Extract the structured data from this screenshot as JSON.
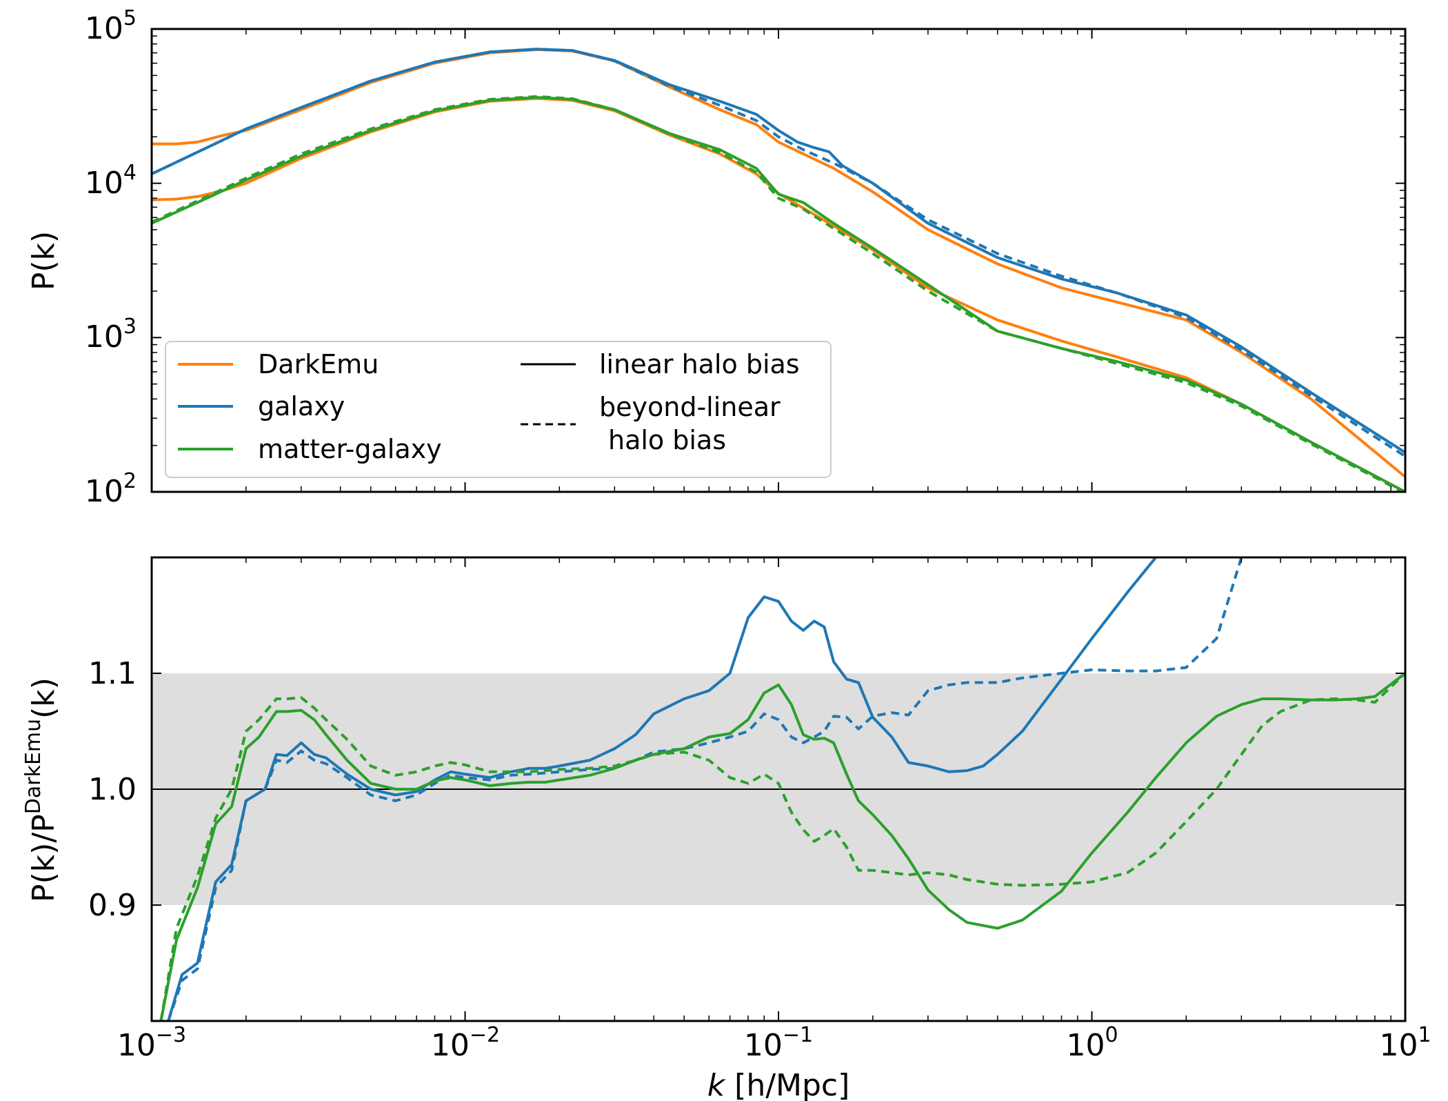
{
  "colors": {
    "DarkEmu": "#ff7f0e",
    "galaxy": "#1f77b4",
    "matter-galaxy": "#2ca02c",
    "band": "#dedede"
  },
  "legend": {
    "entries": [
      {
        "label": "DarkEmu",
        "color": "#ff7f0e",
        "style": "solid"
      },
      {
        "label": "galaxy",
        "color": "#1f77b4",
        "style": "solid"
      },
      {
        "label": "matter-galaxy",
        "color": "#2ca02c",
        "style": "solid"
      },
      {
        "label": "linear halo bias",
        "color": "#000000",
        "style": "solid"
      },
      {
        "label": "beyond-linear",
        "label2": "halo bias",
        "color": "#000000",
        "style": "dashed"
      }
    ]
  },
  "chart_data": [
    {
      "type": "line",
      "xscale": "log",
      "yscale": "log",
      "xlim": [
        0.001,
        10
      ],
      "ylim": [
        100,
        100000
      ],
      "xlabel": "k [h/Mpc]",
      "ylabel": "P(k)",
      "xticks": [
        {
          "base": "10",
          "exp": "−3"
        },
        {
          "base": "10",
          "exp": "−2"
        },
        {
          "base": "10",
          "exp": "−1"
        },
        {
          "base": "10",
          "exp": "0"
        },
        {
          "base": "10",
          "exp": "1"
        }
      ],
      "yticks": [
        {
          "v": 100,
          "base": "10",
          "exp": "2"
        },
        {
          "v": 1000,
          "base": "10",
          "exp": "3"
        },
        {
          "v": 10000,
          "base": "10",
          "exp": "4"
        },
        {
          "v": 100000,
          "base": "10",
          "exp": "5"
        }
      ],
      "legend_position": "lower left",
      "series": [
        {
          "name": "DarkEmu",
          "color": "#ff7f0e",
          "dash": false,
          "x": [
            0.001,
            0.0012,
            0.0014,
            0.0017,
            0.002,
            0.003,
            0.005,
            0.008,
            0.012,
            0.017,
            0.022,
            0.03,
            0.045,
            0.065,
            0.085,
            0.1,
            0.12,
            0.15,
            0.2,
            0.3,
            0.5,
            0.8,
            1.2,
            2,
            3,
            5,
            10
          ],
          "y": [
            18000,
            18000,
            18500,
            20500,
            22000,
            30000,
            45000,
            60000,
            70000,
            73500,
            72000,
            62000,
            42000,
            30000,
            24000,
            18500,
            15500,
            12500,
            8800,
            5000,
            3000,
            2100,
            1700,
            1300,
            800,
            400,
            125
          ]
        },
        {
          "name": "galaxy",
          "color": "#1f77b4",
          "dash": false,
          "x": [
            0.001,
            0.0015,
            0.002,
            0.003,
            0.005,
            0.008,
            0.012,
            0.017,
            0.022,
            0.03,
            0.045,
            0.065,
            0.085,
            0.1,
            0.115,
            0.13,
            0.145,
            0.16,
            0.2,
            0.3,
            0.5,
            0.8,
            1.2,
            2,
            3,
            5,
            10
          ],
          "y": [
            11500,
            17000,
            22500,
            31000,
            46000,
            61000,
            71000,
            74000,
            72500,
            62500,
            43500,
            34000,
            28000,
            22000,
            18500,
            17000,
            16000,
            13000,
            10000,
            5500,
            3300,
            2400,
            1950,
            1400,
            870,
            440,
            180
          ]
        },
        {
          "name": "galaxy",
          "color": "#1f77b4",
          "dash": true,
          "x": [
            0.001,
            0.0015,
            0.002,
            0.003,
            0.005,
            0.008,
            0.012,
            0.017,
            0.022,
            0.03,
            0.045,
            0.065,
            0.085,
            0.1,
            0.12,
            0.15,
            0.2,
            0.3,
            0.5,
            0.8,
            1.2,
            2,
            3,
            5,
            10
          ],
          "y": [
            11500,
            17000,
            22500,
            31000,
            46000,
            61000,
            71000,
            74000,
            72500,
            62000,
            42500,
            32000,
            25500,
            20000,
            16500,
            13500,
            10000,
            5800,
            3500,
            2500,
            1950,
            1350,
            830,
            420,
            170
          ]
        },
        {
          "name": "DarkEmu",
          "color": "#ff7f0e",
          "dash": false,
          "x": [
            0.001,
            0.0012,
            0.0014,
            0.0017,
            0.002,
            0.003,
            0.005,
            0.008,
            0.012,
            0.017,
            0.022,
            0.03,
            0.045,
            0.065,
            0.085,
            0.1,
            0.12,
            0.15,
            0.2,
            0.3,
            0.5,
            0.8,
            1.2,
            2,
            3,
            5,
            10
          ],
          "y": [
            7800,
            7900,
            8200,
            9000,
            10000,
            14500,
            21500,
            29000,
            34000,
            35500,
            34500,
            29500,
            20500,
            15500,
            11500,
            8600,
            6900,
            5300,
            3700,
            2100,
            1300,
            950,
            750,
            550,
            370,
            210,
            100
          ]
        },
        {
          "name": "matter-galaxy",
          "color": "#2ca02c",
          "dash": false,
          "x": [
            0.001,
            0.0015,
            0.002,
            0.003,
            0.005,
            0.008,
            0.012,
            0.017,
            0.022,
            0.03,
            0.045,
            0.065,
            0.085,
            0.1,
            0.12,
            0.15,
            0.2,
            0.3,
            0.5,
            0.8,
            1.2,
            2,
            3,
            5,
            10
          ],
          "y": [
            5500,
            8000,
            10500,
            15000,
            22000,
            29500,
            34500,
            36000,
            35000,
            30000,
            21000,
            16500,
            12500,
            8500,
            7500,
            5500,
            3800,
            2200,
            1100,
            850,
            700,
            530,
            370,
            210,
            100
          ]
        },
        {
          "name": "matter-galaxy",
          "color": "#2ca02c",
          "dash": true,
          "x": [
            0.001,
            0.0015,
            0.002,
            0.003,
            0.005,
            0.008,
            0.012,
            0.017,
            0.022,
            0.03,
            0.045,
            0.065,
            0.085,
            0.1,
            0.12,
            0.15,
            0.2,
            0.3,
            0.5,
            0.8,
            1.2,
            2,
            3,
            5,
            10
          ],
          "y": [
            5600,
            8200,
            10800,
            15500,
            22500,
            30000,
            35000,
            36500,
            35300,
            30000,
            20800,
            15800,
            11800,
            8000,
            6800,
            5100,
            3500,
            2000,
            1100,
            850,
            680,
            510,
            360,
            205,
            98
          ]
        }
      ]
    },
    {
      "type": "line",
      "xscale": "log",
      "yscale": "linear",
      "xlim": [
        0.001,
        10
      ],
      "ylim": [
        0.8,
        1.2
      ],
      "xlabel": "k [h/Mpc]",
      "ylabel": "P(k)/P^{DarkEmu}(k)",
      "xticks": [
        {
          "base": "10",
          "exp": "−3"
        },
        {
          "base": "10",
          "exp": "−2"
        },
        {
          "base": "10",
          "exp": "−1"
        },
        {
          "base": "10",
          "exp": "0"
        },
        {
          "base": "10",
          "exp": "1"
        }
      ],
      "yticks": [
        "0.9",
        "1.0",
        "1.1"
      ],
      "band": [
        0.9,
        1.1
      ],
      "hline": 1.0,
      "series": [
        {
          "name": "galaxy",
          "color": "#1f77b4",
          "dash": false,
          "x": [
            0.00113,
            0.00125,
            0.0014,
            0.0016,
            0.0018,
            0.002,
            0.0023,
            0.0025,
            0.0027,
            0.003,
            0.0033,
            0.0036,
            0.0042,
            0.005,
            0.006,
            0.007,
            0.008,
            0.009,
            0.01,
            0.012,
            0.014,
            0.016,
            0.018,
            0.02,
            0.025,
            0.03,
            0.035,
            0.04,
            0.05,
            0.06,
            0.07,
            0.08,
            0.09,
            0.1,
            0.11,
            0.12,
            0.13,
            0.14,
            0.15,
            0.165,
            0.18,
            0.2,
            0.23,
            0.26,
            0.3,
            0.35,
            0.4,
            0.45,
            0.5,
            0.6,
            0.8,
            1.0,
            1.3,
            1.6
          ],
          "y": [
            0.8,
            0.84,
            0.85,
            0.92,
            0.935,
            0.99,
            1.0,
            1.03,
            1.029,
            1.04,
            1.03,
            1.027,
            1.013,
            1.0,
            0.995,
            0.998,
            1.008,
            1.015,
            1.013,
            1.01,
            1.015,
            1.018,
            1.018,
            1.02,
            1.025,
            1.035,
            1.047,
            1.065,
            1.078,
            1.085,
            1.1,
            1.148,
            1.166,
            1.162,
            1.145,
            1.137,
            1.145,
            1.14,
            1.11,
            1.095,
            1.092,
            1.062,
            1.045,
            1.023,
            1.02,
            1.015,
            1.016,
            1.02,
            1.03,
            1.05,
            1.095,
            1.13,
            1.17,
            1.2
          ]
        },
        {
          "name": "galaxy",
          "color": "#1f77b4",
          "dash": true,
          "x": [
            0.00113,
            0.00125,
            0.0014,
            0.0016,
            0.0018,
            0.002,
            0.0023,
            0.0025,
            0.0027,
            0.003,
            0.0033,
            0.0036,
            0.0042,
            0.005,
            0.006,
            0.007,
            0.008,
            0.009,
            0.01,
            0.012,
            0.014,
            0.016,
            0.018,
            0.02,
            0.025,
            0.03,
            0.035,
            0.04,
            0.05,
            0.06,
            0.07,
            0.08,
            0.09,
            0.1,
            0.11,
            0.12,
            0.13,
            0.14,
            0.15,
            0.165,
            0.18,
            0.2,
            0.23,
            0.26,
            0.3,
            0.35,
            0.4,
            0.5,
            0.6,
            0.8,
            1.0,
            1.3,
            1.6,
            2.0,
            2.5,
            3.0
          ],
          "y": [
            0.8,
            0.835,
            0.845,
            0.915,
            0.93,
            0.99,
            1.0,
            1.025,
            1.023,
            1.033,
            1.025,
            1.022,
            1.01,
            0.995,
            0.99,
            0.995,
            1.005,
            1.012,
            1.01,
            1.008,
            1.012,
            1.013,
            1.014,
            1.015,
            1.017,
            1.018,
            1.025,
            1.032,
            1.035,
            1.04,
            1.045,
            1.05,
            1.065,
            1.06,
            1.045,
            1.04,
            1.045,
            1.05,
            1.063,
            1.062,
            1.052,
            1.063,
            1.066,
            1.064,
            1.085,
            1.09,
            1.092,
            1.092,
            1.096,
            1.1,
            1.103,
            1.102,
            1.102,
            1.105,
            1.13,
            1.2
          ]
        },
        {
          "name": "matter-galaxy",
          "color": "#2ca02c",
          "dash": false,
          "x": [
            0.00107,
            0.0012,
            0.0014,
            0.0016,
            0.0018,
            0.002,
            0.0022,
            0.0025,
            0.0027,
            0.003,
            0.0033,
            0.0036,
            0.0042,
            0.005,
            0.006,
            0.007,
            0.008,
            0.009,
            0.01,
            0.012,
            0.014,
            0.016,
            0.018,
            0.02,
            0.025,
            0.03,
            0.035,
            0.04,
            0.05,
            0.06,
            0.07,
            0.08,
            0.09,
            0.1,
            0.11,
            0.12,
            0.13,
            0.14,
            0.15,
            0.165,
            0.18,
            0.2,
            0.23,
            0.26,
            0.3,
            0.35,
            0.4,
            0.5,
            0.6,
            0.8,
            1.0,
            1.3,
            1.6,
            2.0,
            2.5,
            3.0,
            3.5,
            4.0,
            5.0,
            6.0,
            7.0,
            8.0,
            10.0
          ],
          "y": [
            0.8,
            0.87,
            0.915,
            0.97,
            0.985,
            1.035,
            1.045,
            1.067,
            1.067,
            1.068,
            1.06,
            1.047,
            1.025,
            1.005,
            1.0,
            1.0,
            1.007,
            1.01,
            1.008,
            1.003,
            1.005,
            1.006,
            1.006,
            1.008,
            1.012,
            1.018,
            1.025,
            1.03,
            1.035,
            1.045,
            1.048,
            1.06,
            1.083,
            1.09,
            1.073,
            1.047,
            1.043,
            1.044,
            1.04,
            1.013,
            0.99,
            0.978,
            0.96,
            0.94,
            0.913,
            0.896,
            0.885,
            0.88,
            0.887,
            0.912,
            0.945,
            0.98,
            1.01,
            1.04,
            1.063,
            1.073,
            1.078,
            1.078,
            1.077,
            1.077,
            1.078,
            1.08,
            1.1
          ]
        },
        {
          "name": "matter-galaxy",
          "color": "#2ca02c",
          "dash": true,
          "x": [
            0.00107,
            0.0012,
            0.0014,
            0.0016,
            0.0018,
            0.002,
            0.0022,
            0.0025,
            0.0027,
            0.003,
            0.0033,
            0.0036,
            0.0042,
            0.005,
            0.006,
            0.007,
            0.008,
            0.009,
            0.01,
            0.012,
            0.014,
            0.016,
            0.018,
            0.02,
            0.025,
            0.03,
            0.035,
            0.04,
            0.05,
            0.06,
            0.07,
            0.08,
            0.09,
            0.1,
            0.11,
            0.12,
            0.13,
            0.14,
            0.15,
            0.165,
            0.18,
            0.2,
            0.23,
            0.26,
            0.3,
            0.35,
            0.4,
            0.5,
            0.6,
            0.8,
            1.0,
            1.3,
            1.6,
            2.0,
            2.5,
            3.0,
            3.5,
            4.0,
            5.0,
            6.0,
            7.0,
            8.0,
            10.0
          ],
          "y": [
            0.8,
            0.88,
            0.925,
            0.975,
            1.0,
            1.05,
            1.06,
            1.078,
            1.078,
            1.079,
            1.07,
            1.06,
            1.043,
            1.02,
            1.012,
            1.015,
            1.02,
            1.023,
            1.021,
            1.015,
            1.015,
            1.015,
            1.016,
            1.017,
            1.018,
            1.02,
            1.025,
            1.03,
            1.032,
            1.025,
            1.01,
            1.005,
            1.013,
            1.005,
            0.98,
            0.965,
            0.955,
            0.96,
            0.966,
            0.95,
            0.93,
            0.93,
            0.928,
            0.926,
            0.928,
            0.926,
            0.922,
            0.918,
            0.917,
            0.918,
            0.92,
            0.928,
            0.945,
            0.972,
            1.0,
            1.03,
            1.055,
            1.067,
            1.077,
            1.078,
            1.077,
            1.075,
            1.1
          ]
        }
      ]
    }
  ]
}
